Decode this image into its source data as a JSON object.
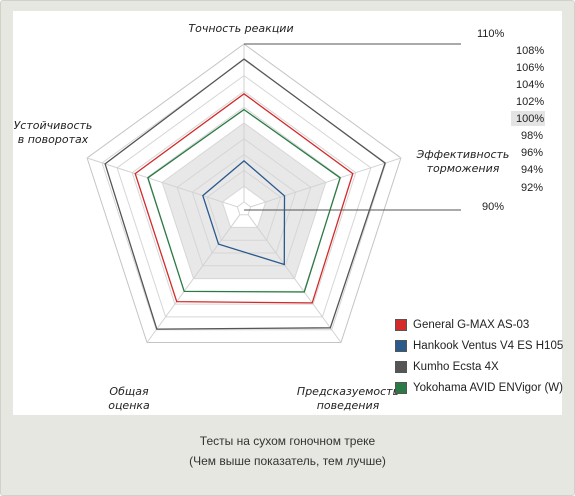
{
  "chart_data": {
    "type": "radar",
    "axes": [
      {
        "label": [
          "Точность реакции"
        ]
      },
      {
        "label": [
          "Эффективность",
          "торможения"
        ]
      },
      {
        "label": [
          "Предсказуемость",
          "поведения"
        ]
      },
      {
        "label": [
          "Общая",
          "оценка"
        ]
      },
      {
        "label": [
          "Устойчивость",
          "в поворотах"
        ]
      }
    ],
    "scale": {
      "min": 90,
      "max": 110,
      "step": 2
    },
    "tick_labels": [
      "110%",
      "108%",
      "106%",
      "104%",
      "102%",
      "100%",
      "98%",
      "96%",
      "94%",
      "92%",
      "90%"
    ],
    "series": [
      {
        "name": "General G-MAX AS-03",
        "color": "#d42a2a",
        "values": [
          103.7,
          103.6,
          103.8,
          103.6,
          103.6
        ]
      },
      {
        "name": "Hankook Ventus V4 ES H105",
        "color": "#2a5a8c",
        "values": [
          95.2,
          94.5,
          97.8,
          94.6,
          94.6
        ]
      },
      {
        "name": "Kumho Ecsta 4X",
        "color": "#555555",
        "values": [
          108.1,
          107.9,
          107.7,
          107.9,
          107.6
        ]
      },
      {
        "name": "Yokohama AVID ENVigor (W)",
        "color": "#2b7a45",
        "values": [
          101.7,
          101.9,
          102.1,
          102.0,
          101.9
        ]
      }
    ],
    "shaded_band": [
      92,
      100
    ]
  },
  "caption": {
    "line1": "Тесты на сухом гоночном треке",
    "line2": "(Чем выше показатель, тем лучше)"
  }
}
